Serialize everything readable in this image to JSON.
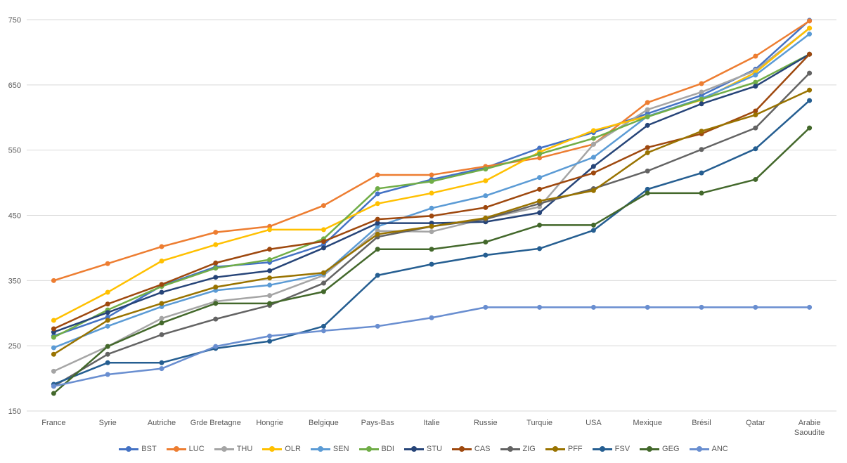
{
  "chart_data": {
    "type": "line",
    "title": "",
    "xlabel": "",
    "ylabel": "",
    "ylim": [
      150,
      750
    ],
    "yticks": [
      "150",
      "250",
      "350",
      "450",
      "550",
      "650",
      "750"
    ],
    "grid": true,
    "legend_position": "bottom",
    "categories": [
      "France",
      "Syrie",
      "Autriche",
      "Grde Bretagne",
      "Hongrie",
      "Belgique",
      "Pays-Bas",
      "Italie",
      "Russie",
      "Turquie",
      "USA",
      "Mexique",
      "Brésil",
      "Qatar",
      "Arabie Saoudite"
    ],
    "series": [
      {
        "name": "BST",
        "color": "#4472C4",
        "values": [
          265,
          294,
          342,
          371,
          378,
          405,
          483,
          505,
          523,
          553,
          577,
          606,
          634,
          674,
          749
        ]
      },
      {
        "name": "LUC",
        "color": "#ED7D31",
        "values": [
          350,
          376,
          402,
          424,
          433,
          465,
          512,
          512,
          525,
          538,
          559,
          623,
          652,
          694,
          748
        ]
      },
      {
        "name": "THU",
        "color": "#A5A5A5",
        "values": [
          211,
          249,
          292,
          318,
          327,
          358,
          426,
          425,
          445,
          463,
          559,
          612,
          639,
          672,
          737
        ]
      },
      {
        "name": "OLR",
        "color": "#FFC000",
        "values": [
          289,
          332,
          380,
          405,
          428,
          428,
          468,
          484,
          503,
          547,
          580,
          602,
          627,
          669,
          737
        ]
      },
      {
        "name": "SEN",
        "color": "#5B9BD5",
        "values": [
          247,
          280,
          310,
          335,
          343,
          360,
          433,
          461,
          480,
          508,
          539,
          602,
          629,
          665,
          728
        ]
      },
      {
        "name": "BDI",
        "color": "#70AD47",
        "values": [
          263,
          305,
          341,
          369,
          382,
          414,
          491,
          502,
          521,
          544,
          568,
          601,
          628,
          654,
          697
        ]
      },
      {
        "name": "STU",
        "color": "#264478",
        "values": [
          271,
          301,
          332,
          355,
          365,
          400,
          438,
          438,
          440,
          454,
          525,
          588,
          621,
          648,
          697
        ]
      },
      {
        "name": "CAS",
        "color": "#9E480E",
        "values": [
          276,
          314,
          344,
          377,
          398,
          410,
          444,
          449,
          462,
          490,
          515,
          554,
          575,
          610,
          697
        ]
      },
      {
        "name": "ZIG",
        "color": "#636363",
        "values": [
          188,
          237,
          267,
          291,
          312,
          346,
          417,
          433,
          444,
          468,
          491,
          518,
          551,
          584,
          668
        ]
      },
      {
        "name": "PFF",
        "color": "#997300",
        "values": [
          237,
          289,
          315,
          340,
          354,
          362,
          421,
          433,
          446,
          472,
          488,
          546,
          579,
          604,
          642
        ]
      },
      {
        "name": "FSV",
        "color": "#255E91",
        "values": [
          191,
          224,
          224,
          246,
          257,
          280,
          358,
          375,
          389,
          399,
          427,
          490,
          515,
          552,
          626
        ]
      },
      {
        "name": "GEG",
        "color": "#43682B",
        "values": [
          177,
          249,
          285,
          315,
          315,
          333,
          398,
          398,
          409,
          435,
          435,
          484,
          484,
          505,
          584
        ]
      },
      {
        "name": "ANC",
        "color": "#698ED0",
        "values": [
          188,
          206,
          215,
          249,
          265,
          273,
          280,
          293,
          309,
          309,
          309,
          309,
          309,
          309,
          309
        ]
      }
    ]
  }
}
